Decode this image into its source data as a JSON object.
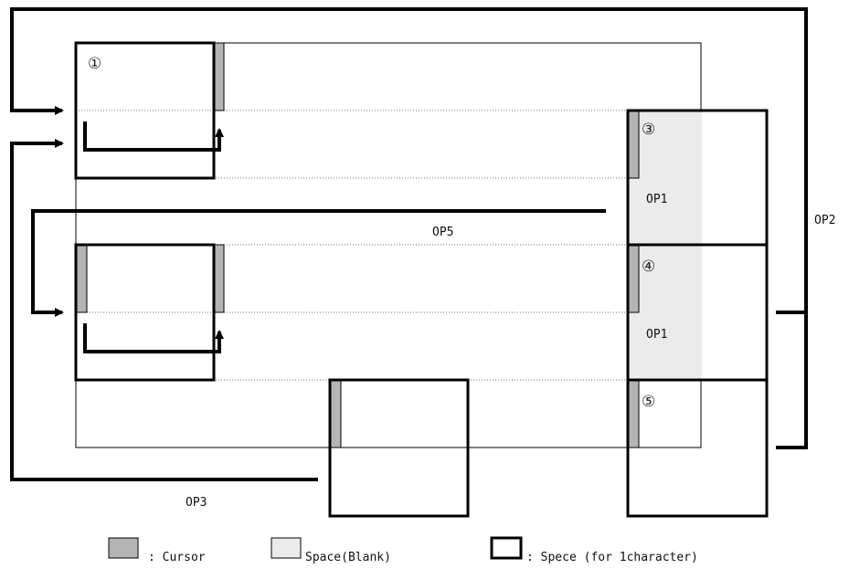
{
  "markers": {
    "m1": "①",
    "m3": "③",
    "m4": "④",
    "m5": "⑤"
  },
  "operations": {
    "op1_upper": "OP1",
    "op1_lower": "OP1",
    "op2": "OP2",
    "op3": "OP3",
    "op5": "OP5"
  },
  "legend": {
    "cursor_label": ": Cursor",
    "space_label": "Space(Blank)",
    "char_label": ": Spece (for 1character)"
  },
  "colors": {
    "cursor": "#b4b4b4",
    "space": "#ebebeb",
    "line": "#000000",
    "dotted": "#777777"
  }
}
